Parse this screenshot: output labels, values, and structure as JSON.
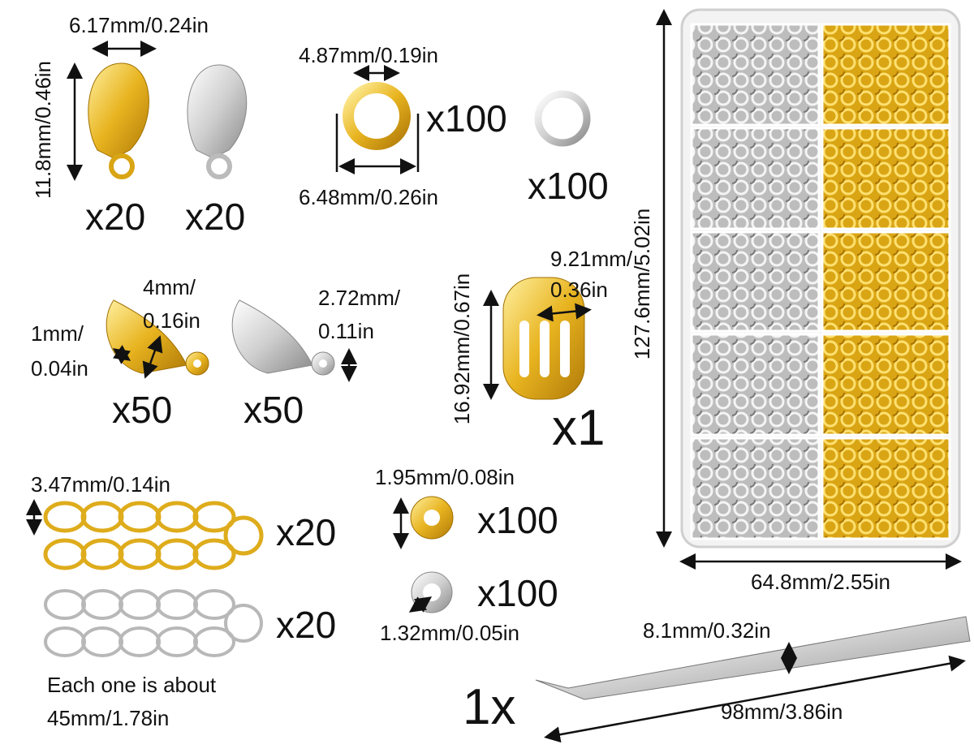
{
  "clasps": {
    "width": "6.17mm/0.24in",
    "height": "11.8mm/0.46in",
    "gold_qty": "x20",
    "silver_qty": "x20"
  },
  "jump_rings": {
    "inner": "4.87mm/0.19in",
    "outer": "6.48mm/0.26in",
    "gold_qty": "x100",
    "silver_qty": "x100"
  },
  "bead_tips": {
    "size_a": [
      "4mm/",
      "0.16in"
    ],
    "size_b": [
      "1mm/",
      "0.04in"
    ],
    "size_c": [
      "2.72mm/",
      "0.11in"
    ],
    "gold_qty": "x50",
    "silver_qty": "x50"
  },
  "ring_tool": {
    "height": "16.92mm/0.67in",
    "width": [
      "9.21mm/",
      "0.36in"
    ],
    "qty": "x1"
  },
  "extender_chains": {
    "link": "3.47mm/0.14in",
    "gold_qty": "x20",
    "silver_qty": "x20",
    "note": [
      "Each one is about",
      "45mm/1.78in"
    ]
  },
  "crimp_beads": {
    "gold_size": "1.95mm/0.08in",
    "gold_qty": "x100",
    "silver_qty": "x100",
    "silver_size": "1.32mm/0.05in"
  },
  "storage_box": {
    "height": "127.6mm/5.02in",
    "width": "64.8mm/2.55in"
  },
  "tweezers": {
    "width": "8.1mm/0.32in",
    "length": "98mm/3.86in",
    "qty": "1x"
  }
}
